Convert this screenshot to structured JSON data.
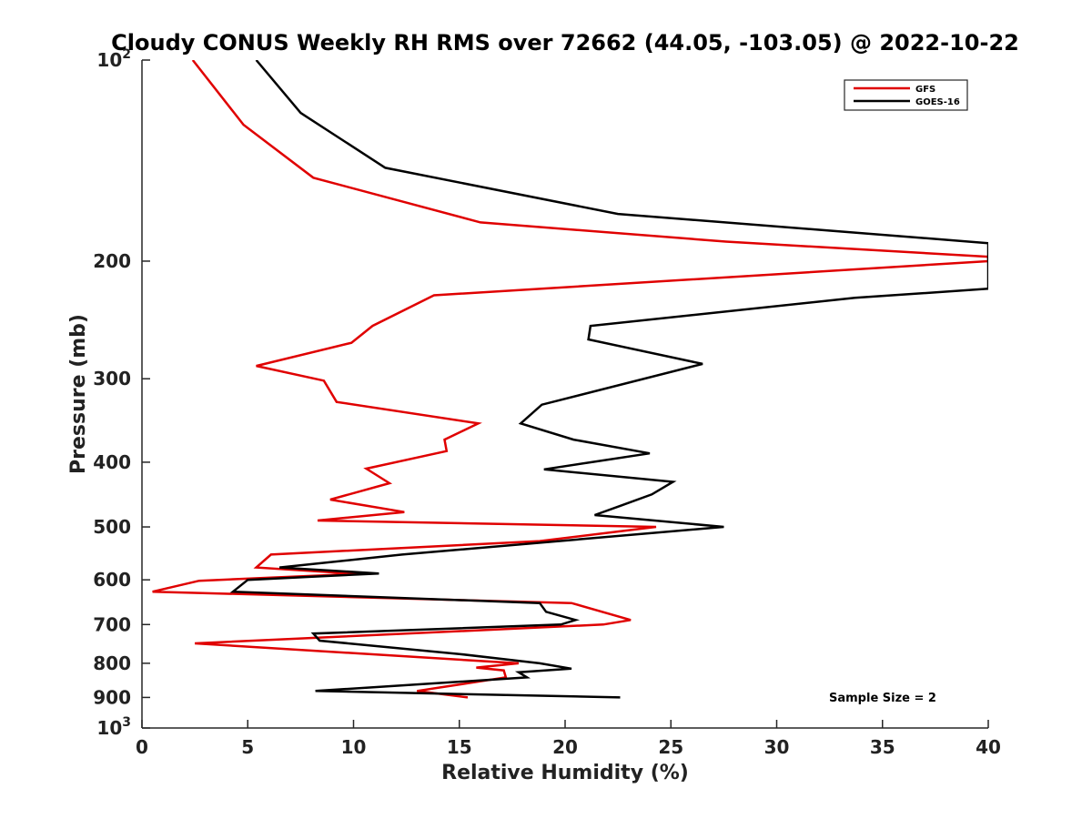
{
  "chart_data": {
    "type": "line",
    "title": "Cloudy CONUS Weekly RH RMS over 72662 (44.05, -103.05) @ 2022-10-22",
    "xlabel": "Relative Humidity (%)",
    "ylabel": "Pressure (mb)",
    "xlim": [
      0,
      40
    ],
    "ylim": [
      100,
      1000
    ],
    "y_scale": "log",
    "y_reversed": true,
    "x_ticks": [
      "0",
      "5",
      "10",
      "15",
      "20",
      "25",
      "30",
      "35",
      "40"
    ],
    "y_ticks": [
      {
        "value": 100,
        "label": "10",
        "sup": "2"
      },
      {
        "value": 200,
        "label": "200",
        "sup": ""
      },
      {
        "value": 300,
        "label": "300",
        "sup": ""
      },
      {
        "value": 400,
        "label": "400",
        "sup": ""
      },
      {
        "value": 500,
        "label": "500",
        "sup": ""
      },
      {
        "value": 600,
        "label": "600",
        "sup": ""
      },
      {
        "value": 700,
        "label": "700",
        "sup": ""
      },
      {
        "value": 800,
        "label": "800",
        "sup": ""
      },
      {
        "value": 900,
        "label": "900",
        "sup": ""
      },
      {
        "value": 1000,
        "label": "10",
        "sup": "3"
      }
    ],
    "grid": false,
    "legend_position": "top-right",
    "annotation": "Sample Size = 2",
    "series": [
      {
        "name": "GFS",
        "color": "#e00000",
        "points": [
          [
            2.4,
            100
          ],
          [
            4.8,
            125
          ],
          [
            8.1,
            150
          ],
          [
            16.0,
            175
          ],
          [
            27.6,
            187
          ],
          [
            40.0,
            197
          ],
          [
            40.0,
            200
          ],
          [
            13.8,
            225
          ],
          [
            10.9,
            250
          ],
          [
            9.9,
            265
          ],
          [
            5.4,
            287
          ],
          [
            8.6,
            302
          ],
          [
            9.2,
            325
          ],
          [
            15.9,
            350
          ],
          [
            14.3,
            370
          ],
          [
            14.4,
            385
          ],
          [
            10.6,
            409
          ],
          [
            11.7,
            430
          ],
          [
            8.9,
            455
          ],
          [
            12.4,
            475
          ],
          [
            8.3,
            489
          ],
          [
            24.3,
            500
          ],
          [
            18.8,
            525
          ],
          [
            6.1,
            550
          ],
          [
            5.4,
            575
          ],
          [
            10.2,
            588
          ],
          [
            2.7,
            602
          ],
          [
            0.5,
            625
          ],
          [
            20.3,
            650
          ],
          [
            23.1,
            689
          ],
          [
            21.8,
            700
          ],
          [
            2.5,
            747
          ],
          [
            17.8,
            800
          ],
          [
            15.8,
            812
          ],
          [
            17.1,
            820
          ],
          [
            17.2,
            840
          ],
          [
            13.0,
            880
          ],
          [
            15.4,
            900
          ]
        ]
      },
      {
        "name": "GOES-16",
        "color": "#000000",
        "points": [
          [
            5.4,
            100
          ],
          [
            7.5,
            120
          ],
          [
            11.5,
            145
          ],
          [
            22.5,
            170
          ],
          [
            40.0,
            188
          ],
          [
            40.0,
            220
          ],
          [
            33.7,
            227
          ],
          [
            21.2,
            250
          ],
          [
            21.1,
            262
          ],
          [
            26.5,
            285
          ],
          [
            18.9,
            328
          ],
          [
            17.9,
            350
          ],
          [
            20.4,
            370
          ],
          [
            24.0,
            388
          ],
          [
            19.0,
            410
          ],
          [
            25.1,
            428
          ],
          [
            24.1,
            447
          ],
          [
            22.6,
            465
          ],
          [
            21.4,
            480
          ],
          [
            27.5,
            500
          ],
          [
            12.3,
            550
          ],
          [
            6.5,
            575
          ],
          [
            11.2,
            587
          ],
          [
            5.0,
            600
          ],
          [
            4.3,
            625
          ],
          [
            18.8,
            650
          ],
          [
            19.1,
            670
          ],
          [
            20.5,
            689
          ],
          [
            19.8,
            700
          ],
          [
            8.1,
            722
          ],
          [
            8.4,
            740
          ],
          [
            15.0,
            775
          ],
          [
            18.8,
            800
          ],
          [
            20.3,
            815
          ],
          [
            17.8,
            825
          ],
          [
            18.2,
            840
          ],
          [
            8.2,
            880
          ],
          [
            22.6,
            900
          ]
        ]
      }
    ]
  }
}
